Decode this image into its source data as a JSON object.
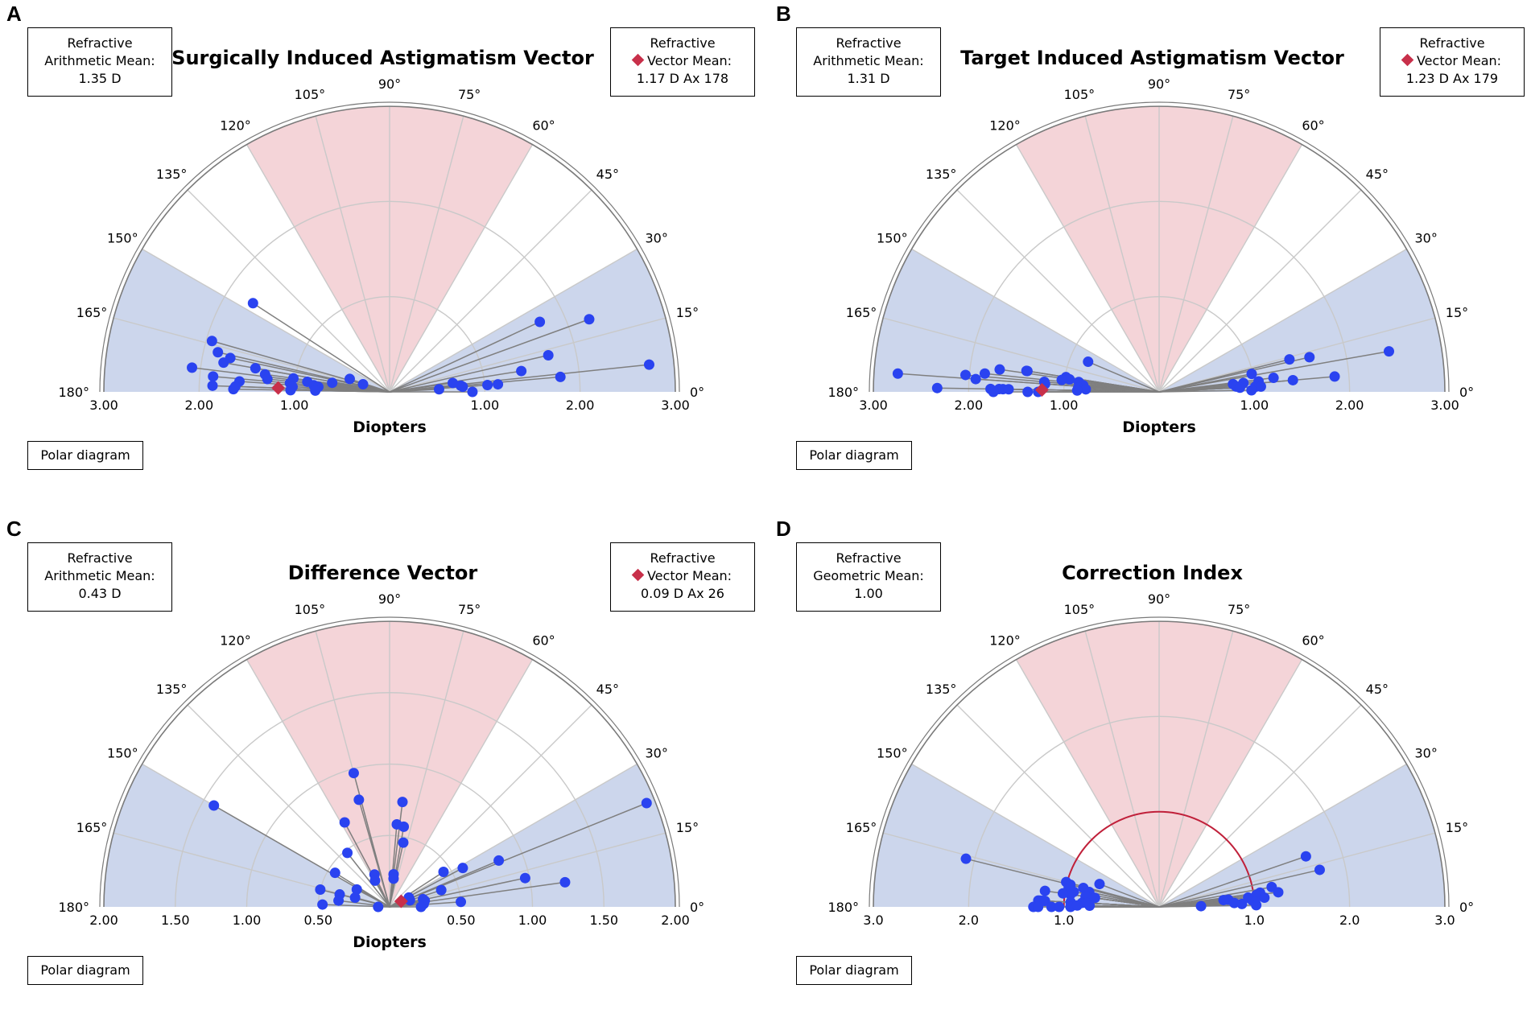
{
  "panels": [
    {
      "letter": "A",
      "title": "Surgically Induced Astigmatism Vector",
      "left_box": {
        "line1": "Refractive",
        "line2": "Arithmetic Mean:",
        "line3": "1.35 D"
      },
      "right_box": {
        "line1": "Refractive",
        "line2": "Vector Mean:",
        "line3": "1.17 D Ax 178"
      },
      "xlabel": "Diopters",
      "button": "Polar diagram"
    },
    {
      "letter": "B",
      "title": "Target Induced Astigmatism Vector",
      "left_box": {
        "line1": "Refractive",
        "line2": "Arithmetic Mean:",
        "line3": "1.31 D"
      },
      "right_box": {
        "line1": "Refractive",
        "line2": "Vector Mean:",
        "line3": "1.23 D Ax 179"
      },
      "xlabel": "Diopters",
      "button": "Polar diagram"
    },
    {
      "letter": "C",
      "title": "Difference Vector",
      "left_box": {
        "line1": "Refractive",
        "line2": "Arithmetic Mean:",
        "line3": "0.43 D"
      },
      "right_box": {
        "line1": "Refractive",
        "line2": "Vector Mean:",
        "line3": "0.09 D Ax 26"
      },
      "xlabel": "Diopters",
      "button": "Polar diagram"
    },
    {
      "letter": "D",
      "title": "Correction Index",
      "left_box": {
        "line1": "Refractive",
        "line2": "Geometric Mean:",
        "line3": "1.00"
      },
      "button": "Polar diagram"
    }
  ],
  "colors": {
    "point": "#2a43f0",
    "mean": "#c8304a",
    "red_sector": "#f4d4d8",
    "blue_sector": "#ccd6ec",
    "grid": "#c9c9c9",
    "outer": "#7a7a7a",
    "ray": "#7f7f7f",
    "unit_circle": "#c0203a"
  },
  "chart_data": [
    {
      "type": "polar-semicircle",
      "title": "Surgically Induced Astigmatism Vector",
      "xlabel": "Diopters",
      "rmax": 3.0,
      "ring_step": 1.0,
      "angle_labels": [
        "0°",
        "15°",
        "30°",
        "45°",
        "60°",
        "75°",
        "90°",
        "105°",
        "120°",
        "135°",
        "150°",
        "165°",
        "180°"
      ],
      "radial_tick_labels": [
        "3.00",
        "2.00",
        "1.00",
        "",
        "1.00",
        "2.00",
        "3.00"
      ],
      "sectors": {
        "red": [
          60,
          120
        ],
        "blue": [
          [
            0,
            30
          ],
          [
            150,
            180
          ]
        ]
      },
      "points": [
        [
          1.71,
          147
        ],
        [
          1.94,
          164
        ],
        [
          1.85,
          167
        ],
        [
          1.77,
          170
        ],
        [
          1.71,
          168
        ],
        [
          1.43,
          170
        ],
        [
          1.32,
          172
        ],
        [
          1.29,
          174
        ],
        [
          2.09,
          173
        ],
        [
          1.86,
          175
        ],
        [
          1.58,
          176
        ],
        [
          1.02,
          172
        ],
        [
          1.05,
          175
        ],
        [
          1.02,
          177
        ],
        [
          0.87,
          173
        ],
        [
          0.8,
          175
        ],
        [
          0.75,
          176
        ],
        [
          0.61,
          171
        ],
        [
          0.44,
          162
        ],
        [
          0.29,
          164
        ],
        [
          1.86,
          178
        ],
        [
          1.62,
          178
        ],
        [
          1.64,
          179
        ],
        [
          1.04,
          179
        ],
        [
          0.78,
          179
        ],
        [
          2.23,
          20
        ],
        [
          1.74,
          25
        ],
        [
          1.71,
          13
        ],
        [
          1.4,
          9
        ],
        [
          0.67,
          8
        ],
        [
          0.75,
          5
        ],
        [
          0.77,
          4
        ],
        [
          1.03,
          4
        ],
        [
          1.14,
          4
        ],
        [
          0.52,
          3
        ],
        [
          1.8,
          5
        ],
        [
          2.74,
          6
        ],
        [
          0.87,
          0
        ]
      ],
      "mean": {
        "magnitude": 1.17,
        "axis": 178
      }
    },
    {
      "type": "polar-semicircle",
      "title": "Target Induced Astigmatism Vector",
      "xlabel": "Diopters",
      "rmax": 3.0,
      "ring_step": 1.0,
      "angle_labels": [
        "0°",
        "15°",
        "30°",
        "45°",
        "60°",
        "75°",
        "90°",
        "105°",
        "120°",
        "135°",
        "150°",
        "165°",
        "180°"
      ],
      "radial_tick_labels": [
        "3.00",
        "2.00",
        "1.00",
        "",
        "1.00",
        "2.00",
        "3.00"
      ],
      "sectors": {
        "red": [
          60,
          120
        ],
        "blue": [
          [
            0,
            30
          ],
          [
            150,
            180
          ]
        ]
      },
      "points": [
        [
          0.81,
          157
        ],
        [
          1.41,
          171
        ],
        [
          1.4,
          171
        ],
        [
          1.69,
          172
        ],
        [
          0.99,
          171
        ],
        [
          0.95,
          172
        ],
        [
          0.85,
          173
        ],
        [
          1.84,
          174
        ],
        [
          2.04,
          175
        ],
        [
          1.21,
          175
        ],
        [
          2.75,
          176
        ],
        [
          1.03,
          173
        ],
        [
          1.2,
          176
        ],
        [
          0.8,
          175
        ],
        [
          0.85,
          177
        ],
        [
          1.93,
          176
        ],
        [
          0.77,
          178
        ],
        [
          2.33,
          179
        ],
        [
          1.68,
          179
        ],
        [
          1.77,
          179
        ],
        [
          1.64,
          179
        ],
        [
          1.38,
          180
        ],
        [
          0.86,
          179
        ],
        [
          1.27,
          180
        ],
        [
          1.74,
          180
        ],
        [
          1.58,
          179
        ],
        [
          1.41,
          14
        ],
        [
          1.62,
          13
        ],
        [
          2.45,
          10
        ],
        [
          0.99,
          11
        ],
        [
          1.21,
          7
        ],
        [
          1.05,
          6
        ],
        [
          0.78,
          6
        ],
        [
          0.89,
          6
        ],
        [
          1.41,
          5
        ],
        [
          0.81,
          4
        ],
        [
          0.85,
          3
        ],
        [
          1.01,
          3
        ],
        [
          1.07,
          3
        ],
        [
          1.85,
          5
        ],
        [
          0.97,
          1
        ]
      ],
      "mean": {
        "magnitude": 1.23,
        "axis": 179
      }
    },
    {
      "type": "polar-semicircle",
      "title": "Difference Vector",
      "xlabel": "Diopters",
      "rmax": 2.0,
      "ring_step": 0.5,
      "angle_labels": [
        "0°",
        "15°",
        "30°",
        "45°",
        "60°",
        "75°",
        "90°",
        "105°",
        "120°",
        "135°",
        "150°",
        "165°",
        "180°"
      ],
      "radial_tick_labels": [
        "2.00",
        "1.50",
        "1.00",
        "0.50",
        "",
        "0.50",
        "1.00",
        "1.50",
        "2.00"
      ],
      "sectors": {
        "red": [
          60,
          120
        ],
        "blue": [
          [
            0,
            30
          ],
          [
            150,
            180
          ]
        ]
      },
      "points": [
        [
          1.42,
          150
        ],
        [
          0.97,
          105
        ],
        [
          0.78,
          106
        ],
        [
          0.67,
          118
        ],
        [
          0.48,
          128
        ],
        [
          0.45,
          148
        ],
        [
          0.5,
          166
        ],
        [
          0.36,
          166
        ],
        [
          0.25,
          165
        ],
        [
          0.26,
          152
        ],
        [
          0.25,
          115
        ],
        [
          0.21,
          119
        ],
        [
          0.74,
          83
        ],
        [
          0.58,
          85
        ],
        [
          0.57,
          80
        ],
        [
          0.46,
          78
        ],
        [
          0.45,
          33
        ],
        [
          0.58,
          28
        ],
        [
          0.83,
          23
        ],
        [
          0.23,
          83
        ],
        [
          0.2,
          82
        ],
        [
          0.15,
          26
        ],
        [
          0.15,
          18
        ],
        [
          0.38,
          18
        ],
        [
          0.24,
          13
        ],
        [
          0.24,
          5
        ],
        [
          0.25,
          10
        ],
        [
          0.97,
          12
        ],
        [
          1.24,
          8
        ],
        [
          0.5,
          4
        ],
        [
          0.47,
          178
        ],
        [
          0.08,
          180
        ],
        [
          0.22,
          0
        ],
        [
          1.94,
          22
        ],
        [
          0.36,
          173
        ]
      ],
      "mean": {
        "magnitude": 0.09,
        "axis": 26
      }
    },
    {
      "type": "polar-semicircle",
      "title": "Correction Index",
      "rmax": 3.0,
      "ring_step": 1.0,
      "angle_labels": [
        "0°",
        "15°",
        "30°",
        "45°",
        "60°",
        "75°",
        "90°",
        "105°",
        "120°",
        "135°",
        "150°",
        "165°",
        "180°"
      ],
      "radial_tick_labels": [
        "3.0",
        "2.0",
        "1.0",
        "",
        "1.0",
        "2.0",
        "3.0"
      ],
      "sectors": {
        "red": [
          60,
          120
        ],
        "blue": [
          [
            0,
            30
          ],
          [
            150,
            180
          ]
        ]
      },
      "unit_circle_radius": 1.0,
      "points": [
        [
          2.09,
          166
        ],
        [
          0.67,
          159
        ],
        [
          1.01,
          165
        ],
        [
          0.96,
          166
        ],
        [
          0.82,
          166
        ],
        [
          0.97,
          168
        ],
        [
          0.75,
          168
        ],
        [
          0.91,
          170
        ],
        [
          1.21,
          172
        ],
        [
          0.94,
          172
        ],
        [
          0.78,
          172
        ],
        [
          0.68,
          172
        ],
        [
          1.27,
          177
        ],
        [
          1.25,
          177
        ],
        [
          1.22,
          177
        ],
        [
          1.2,
          177
        ],
        [
          0.93,
          177
        ],
        [
          0.81,
          177
        ],
        [
          0.76,
          177
        ],
        [
          1.32,
          180
        ],
        [
          1.27,
          180
        ],
        [
          1.13,
          180
        ],
        [
          1.05,
          180
        ],
        [
          0.93,
          180
        ],
        [
          0.86,
          179
        ],
        [
          0.73,
          179
        ],
        [
          1.02,
          172
        ],
        [
          1.63,
          19
        ],
        [
          1.73,
          13
        ],
        [
          1.2,
          10
        ],
        [
          1.26,
          7
        ],
        [
          1.07,
          8
        ],
        [
          1.03,
          7
        ],
        [
          0.94,
          6
        ],
        [
          0.73,
          6
        ],
        [
          0.68,
          6
        ],
        [
          0.98,
          4
        ],
        [
          0.79,
          3
        ],
        [
          1.01,
          3
        ],
        [
          1.11,
          5
        ],
        [
          0.44,
          1
        ],
        [
          1.02,
          1
        ],
        [
          0.87,
          2
        ]
      ]
    }
  ]
}
